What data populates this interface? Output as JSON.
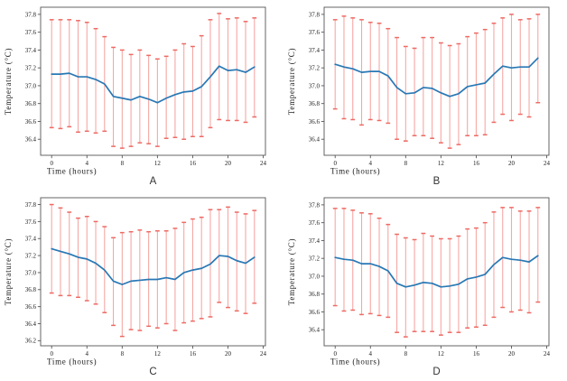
{
  "style": {
    "mean_line_color": "#2878b5",
    "error_bar_color": "#f5a8a5",
    "error_cap_color": "#ee6a64",
    "spine_color": "#555555",
    "text_color": "#1a1a1a",
    "background_color": "#ffffff"
  },
  "chart_data": [
    {
      "type": "line",
      "label": "A",
      "xlabel": "Time (hours)",
      "ylabel": "Temperature (°C)",
      "grid": false,
      "legend": null,
      "x": [
        0,
        1,
        2,
        3,
        4,
        5,
        6,
        7,
        8,
        9,
        10,
        11,
        12,
        13,
        14,
        15,
        16,
        17,
        18,
        19,
        20,
        21,
        22,
        23
      ],
      "series": [
        {
          "name": "mean",
          "values": [
            37.13,
            37.13,
            37.14,
            37.1,
            37.1,
            37.07,
            37.02,
            36.88,
            36.86,
            36.84,
            36.88,
            36.85,
            36.81,
            36.86,
            36.9,
            36.93,
            36.94,
            36.99,
            37.1,
            37.22,
            37.17,
            37.18,
            37.15,
            37.21
          ]
        },
        {
          "name": "error_upper",
          "values": [
            37.74,
            37.74,
            37.74,
            37.73,
            37.71,
            37.64,
            37.55,
            37.43,
            37.4,
            37.35,
            37.4,
            37.34,
            37.3,
            37.33,
            37.4,
            37.47,
            37.44,
            37.56,
            37.74,
            37.81,
            37.75,
            37.76,
            37.72,
            37.76
          ]
        },
        {
          "name": "error_lower",
          "values": [
            36.53,
            36.52,
            36.54,
            36.48,
            36.49,
            36.47,
            36.49,
            36.32,
            36.3,
            36.32,
            36.36,
            36.35,
            36.32,
            36.41,
            36.42,
            36.4,
            36.43,
            36.43,
            36.53,
            36.62,
            36.61,
            36.61,
            36.59,
            36.65
          ]
        }
      ],
      "xlim": [
        -1.25,
        24.25
      ],
      "ylim": [
        36.22,
        37.88
      ],
      "xticks": [
        0,
        4,
        8,
        12,
        16,
        20,
        24
      ],
      "yticks": [
        36.4,
        36.6,
        36.8,
        37.0,
        37.2,
        37.4,
        37.6,
        37.8
      ]
    },
    {
      "type": "line",
      "label": "B",
      "xlabel": "Time (hours)",
      "ylabel": "Temperature (°C)",
      "grid": false,
      "legend": null,
      "x": [
        0,
        1,
        2,
        3,
        4,
        5,
        6,
        7,
        8,
        9,
        10,
        11,
        12,
        13,
        14,
        15,
        16,
        17,
        18,
        19,
        20,
        21,
        22,
        23
      ],
      "series": [
        {
          "name": "mean",
          "values": [
            37.24,
            37.21,
            37.19,
            37.15,
            37.16,
            37.16,
            37.11,
            36.98,
            36.91,
            36.92,
            36.98,
            36.97,
            36.92,
            36.88,
            36.91,
            36.99,
            37.01,
            37.03,
            37.13,
            37.22,
            37.2,
            37.21,
            37.21,
            37.31
          ]
        },
        {
          "name": "error_upper",
          "values": [
            37.74,
            37.78,
            37.76,
            37.74,
            37.71,
            37.7,
            37.64,
            37.54,
            37.44,
            37.42,
            37.54,
            37.54,
            37.48,
            37.45,
            37.47,
            37.55,
            37.59,
            37.63,
            37.7,
            37.76,
            37.8,
            37.74,
            37.75,
            37.8
          ]
        },
        {
          "name": "error_lower",
          "values": [
            36.74,
            36.63,
            36.62,
            36.56,
            36.62,
            36.61,
            36.58,
            36.4,
            36.38,
            36.44,
            36.44,
            36.41,
            36.36,
            36.3,
            36.34,
            36.44,
            36.44,
            36.45,
            36.59,
            36.68,
            36.61,
            36.68,
            36.65,
            36.81
          ]
        }
      ],
      "xlim": [
        -1.25,
        24.25
      ],
      "ylim": [
        36.22,
        37.88
      ],
      "xticks": [
        0,
        4,
        8,
        12,
        16,
        20,
        24
      ],
      "yticks": [
        36.4,
        36.6,
        36.8,
        37.0,
        37.2,
        37.4,
        37.6,
        37.8
      ]
    },
    {
      "type": "line",
      "label": "C",
      "xlabel": "Time (hours)",
      "ylabel": "Temperature (°C)",
      "grid": false,
      "legend": null,
      "x": [
        0,
        1,
        2,
        3,
        4,
        5,
        6,
        7,
        8,
        9,
        10,
        11,
        12,
        13,
        14,
        15,
        16,
        17,
        18,
        19,
        20,
        21,
        22,
        23
      ],
      "series": [
        {
          "name": "mean",
          "values": [
            37.28,
            37.25,
            37.22,
            37.18,
            37.16,
            37.11,
            37.03,
            36.9,
            36.86,
            36.9,
            36.91,
            36.92,
            36.92,
            36.94,
            36.92,
            37.0,
            37.03,
            37.05,
            37.1,
            37.2,
            37.19,
            37.14,
            37.11,
            37.18
          ]
        },
        {
          "name": "error_upper",
          "values": [
            37.8,
            37.76,
            37.71,
            37.64,
            37.66,
            37.6,
            37.54,
            37.41,
            37.47,
            37.48,
            37.5,
            37.48,
            37.49,
            37.49,
            37.52,
            37.59,
            37.63,
            37.65,
            37.74,
            37.74,
            37.77,
            37.71,
            37.69,
            37.73
          ]
        },
        {
          "name": "error_lower",
          "values": [
            36.76,
            36.73,
            36.73,
            36.71,
            36.67,
            36.63,
            36.53,
            36.38,
            36.25,
            36.33,
            36.32,
            36.37,
            36.35,
            36.4,
            36.32,
            36.41,
            36.43,
            36.46,
            36.48,
            36.65,
            36.59,
            36.55,
            36.52,
            36.64
          ]
        }
      ],
      "xlim": [
        -1.25,
        24.25
      ],
      "ylim": [
        36.14,
        37.88
      ],
      "xticks": [
        0,
        4,
        8,
        12,
        16,
        20,
        24
      ],
      "yticks": [
        36.2,
        36.4,
        36.6,
        36.8,
        37.0,
        37.2,
        37.4,
        37.6,
        37.8
      ]
    },
    {
      "type": "line",
      "label": "D",
      "xlabel": "Time (hours)",
      "ylabel": "Temperature (°C)",
      "grid": false,
      "legend": null,
      "x": [
        0,
        1,
        2,
        3,
        4,
        5,
        6,
        7,
        8,
        9,
        10,
        11,
        12,
        13,
        14,
        15,
        16,
        17,
        18,
        19,
        20,
        21,
        22,
        23
      ],
      "series": [
        {
          "name": "mean",
          "values": [
            37.21,
            37.19,
            37.18,
            37.14,
            37.14,
            37.11,
            37.06,
            36.92,
            36.88,
            36.9,
            36.93,
            36.92,
            36.88,
            36.89,
            36.91,
            36.97,
            36.99,
            37.02,
            37.13,
            37.21,
            37.19,
            37.18,
            37.16,
            37.23
          ]
        },
        {
          "name": "error_upper",
          "values": [
            37.76,
            37.76,
            37.74,
            37.71,
            37.7,
            37.65,
            37.58,
            37.47,
            37.43,
            37.41,
            37.48,
            37.45,
            37.42,
            37.42,
            37.45,
            37.53,
            37.54,
            37.6,
            37.72,
            37.77,
            37.77,
            37.73,
            37.73,
            37.77
          ]
        },
        {
          "name": "error_lower",
          "values": [
            36.67,
            36.61,
            36.62,
            36.57,
            36.58,
            36.56,
            36.54,
            36.37,
            36.32,
            36.38,
            36.38,
            36.38,
            36.34,
            36.37,
            36.37,
            36.42,
            36.43,
            36.45,
            36.54,
            36.65,
            36.6,
            36.62,
            36.59,
            36.71
          ]
        }
      ],
      "xlim": [
        -1.25,
        24.25
      ],
      "ylim": [
        36.22,
        37.88
      ],
      "xticks": [
        0,
        4,
        8,
        12,
        16,
        20,
        24
      ],
      "yticks": [
        36.4,
        36.6,
        36.8,
        37.0,
        37.2,
        37.4,
        37.6,
        37.8
      ]
    }
  ]
}
